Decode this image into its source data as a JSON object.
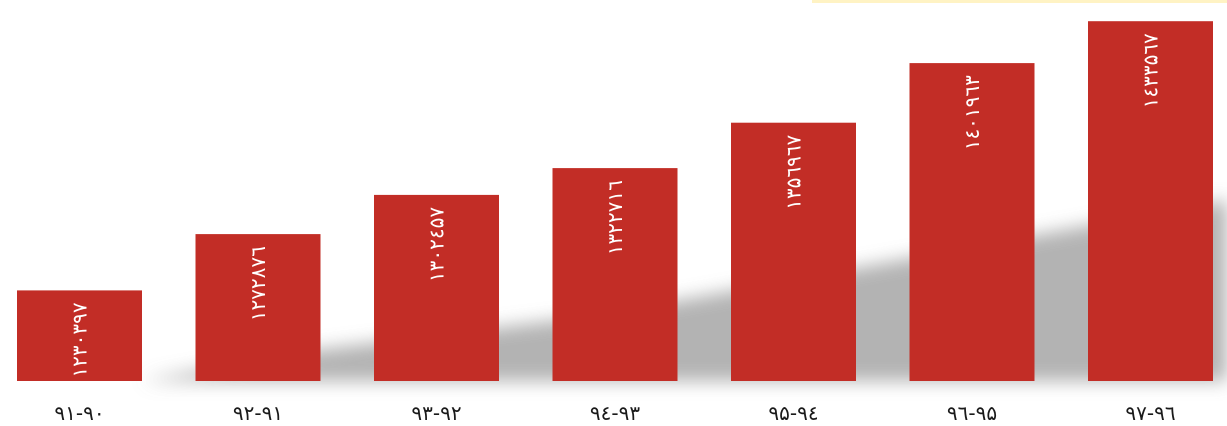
{
  "colors": {
    "bar": "#c22d26",
    "bar_text": "#ffffff",
    "tick_text": "#1a1a1a",
    "accent_line": "#fff3c4",
    "shadow": "#9a9a9a"
  },
  "chart_data": {
    "type": "bar",
    "categories": [
      "۹۱-۹۰",
      "۹۲-۹۱",
      "۹۳-۹۲",
      "۹٤-۹۳",
      "۹۵-۹٤",
      "۹٦-۹۵",
      "۹۷-۹٦"
    ],
    "values": [
      1230397,
      1272876,
      1302457,
      1322716,
      1356967,
      1401963,
      1433567
    ],
    "value_labels": [
      "۱۲۳۰۳۹۷",
      "۱۲۷۲۸۷٦",
      "۱۳۰۲٤۵۷",
      "۱۳۲۲۷۱٦",
      "۱۳۵٦۹٦۷",
      "۱٤۰۱۹٦۳",
      "۱٤۳۳۵٦۷"
    ],
    "title": "",
    "xlabel": "",
    "ylabel": "",
    "ylim": [
      1162000,
      1439000
    ],
    "grid": false,
    "legend": "none"
  }
}
